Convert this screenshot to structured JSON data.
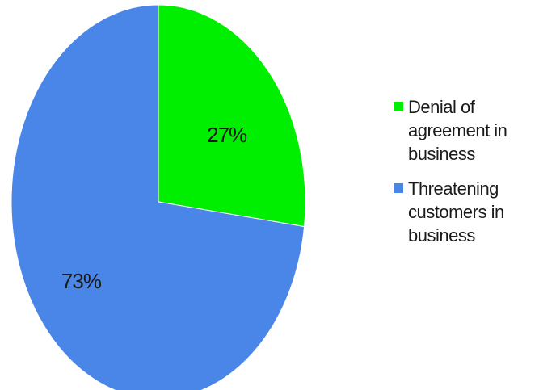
{
  "chart_data": {
    "type": "pie",
    "categories": [
      "Denial of agreement in business",
      "Threatening customers in business"
    ],
    "values": [
      27,
      73
    ],
    "labels": [
      "27%",
      "73%"
    ],
    "colors": [
      "#00ee00",
      "#4a86e8"
    ],
    "legend_position": "right",
    "title": ""
  },
  "legend": {
    "items": [
      {
        "text": "Denial of\nagreement in\nbusiness",
        "color": "#00ee00"
      },
      {
        "text": "Threatening\ncustomers in\nbusiness",
        "color": "#4a86e8"
      }
    ]
  }
}
